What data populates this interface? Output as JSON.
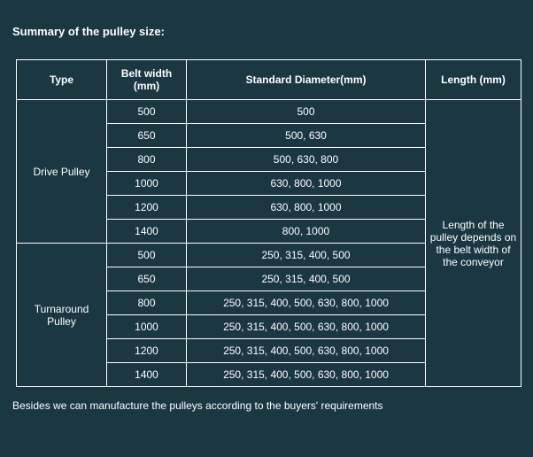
{
  "title": "Summary of the pulley size:",
  "columns": {
    "type": "Type",
    "belt_width": "Belt width (mm)",
    "diameter": "Standard Diameter(mm)",
    "length": "Length (mm)"
  },
  "length_note": "Length of the pulley depends on the belt width of the conveyor",
  "groups": [
    {
      "type_label": "Drive Pulley",
      "rows": [
        {
          "bw": "500",
          "diam": "500"
        },
        {
          "bw": "650",
          "diam": "500, 630"
        },
        {
          "bw": "800",
          "diam": "500, 630, 800"
        },
        {
          "bw": "1000",
          "diam": "630, 800, 1000"
        },
        {
          "bw": "1200",
          "diam": "630, 800, 1000"
        },
        {
          "bw": "1400",
          "diam": "800, 1000"
        }
      ]
    },
    {
      "type_label": "Turnaround Pulley",
      "rows": [
        {
          "bw": "500",
          "diam": "250, 315, 400, 500"
        },
        {
          "bw": "650",
          "diam": "250, 315, 400, 500"
        },
        {
          "bw": "800",
          "diam": "250, 315, 400, 500, 630, 800, 1000"
        },
        {
          "bw": "1000",
          "diam": "250, 315, 400, 500, 630, 800, 1000"
        },
        {
          "bw": "1200",
          "diam": "250, 315, 400, 500, 630, 800, 1000"
        },
        {
          "bw": "1400",
          "diam": "250, 315, 400, 500, 630, 800, 1000"
        }
      ]
    }
  ],
  "footer": "Besides we can manufacture the pulleys according to the buyers' requirements",
  "style": {
    "background_color": "#1a3742",
    "border_color": "#ffffff",
    "text_color": "#ffffff",
    "title_fontsize": 13,
    "cell_fontsize": 12,
    "footer_fontsize": 12
  }
}
